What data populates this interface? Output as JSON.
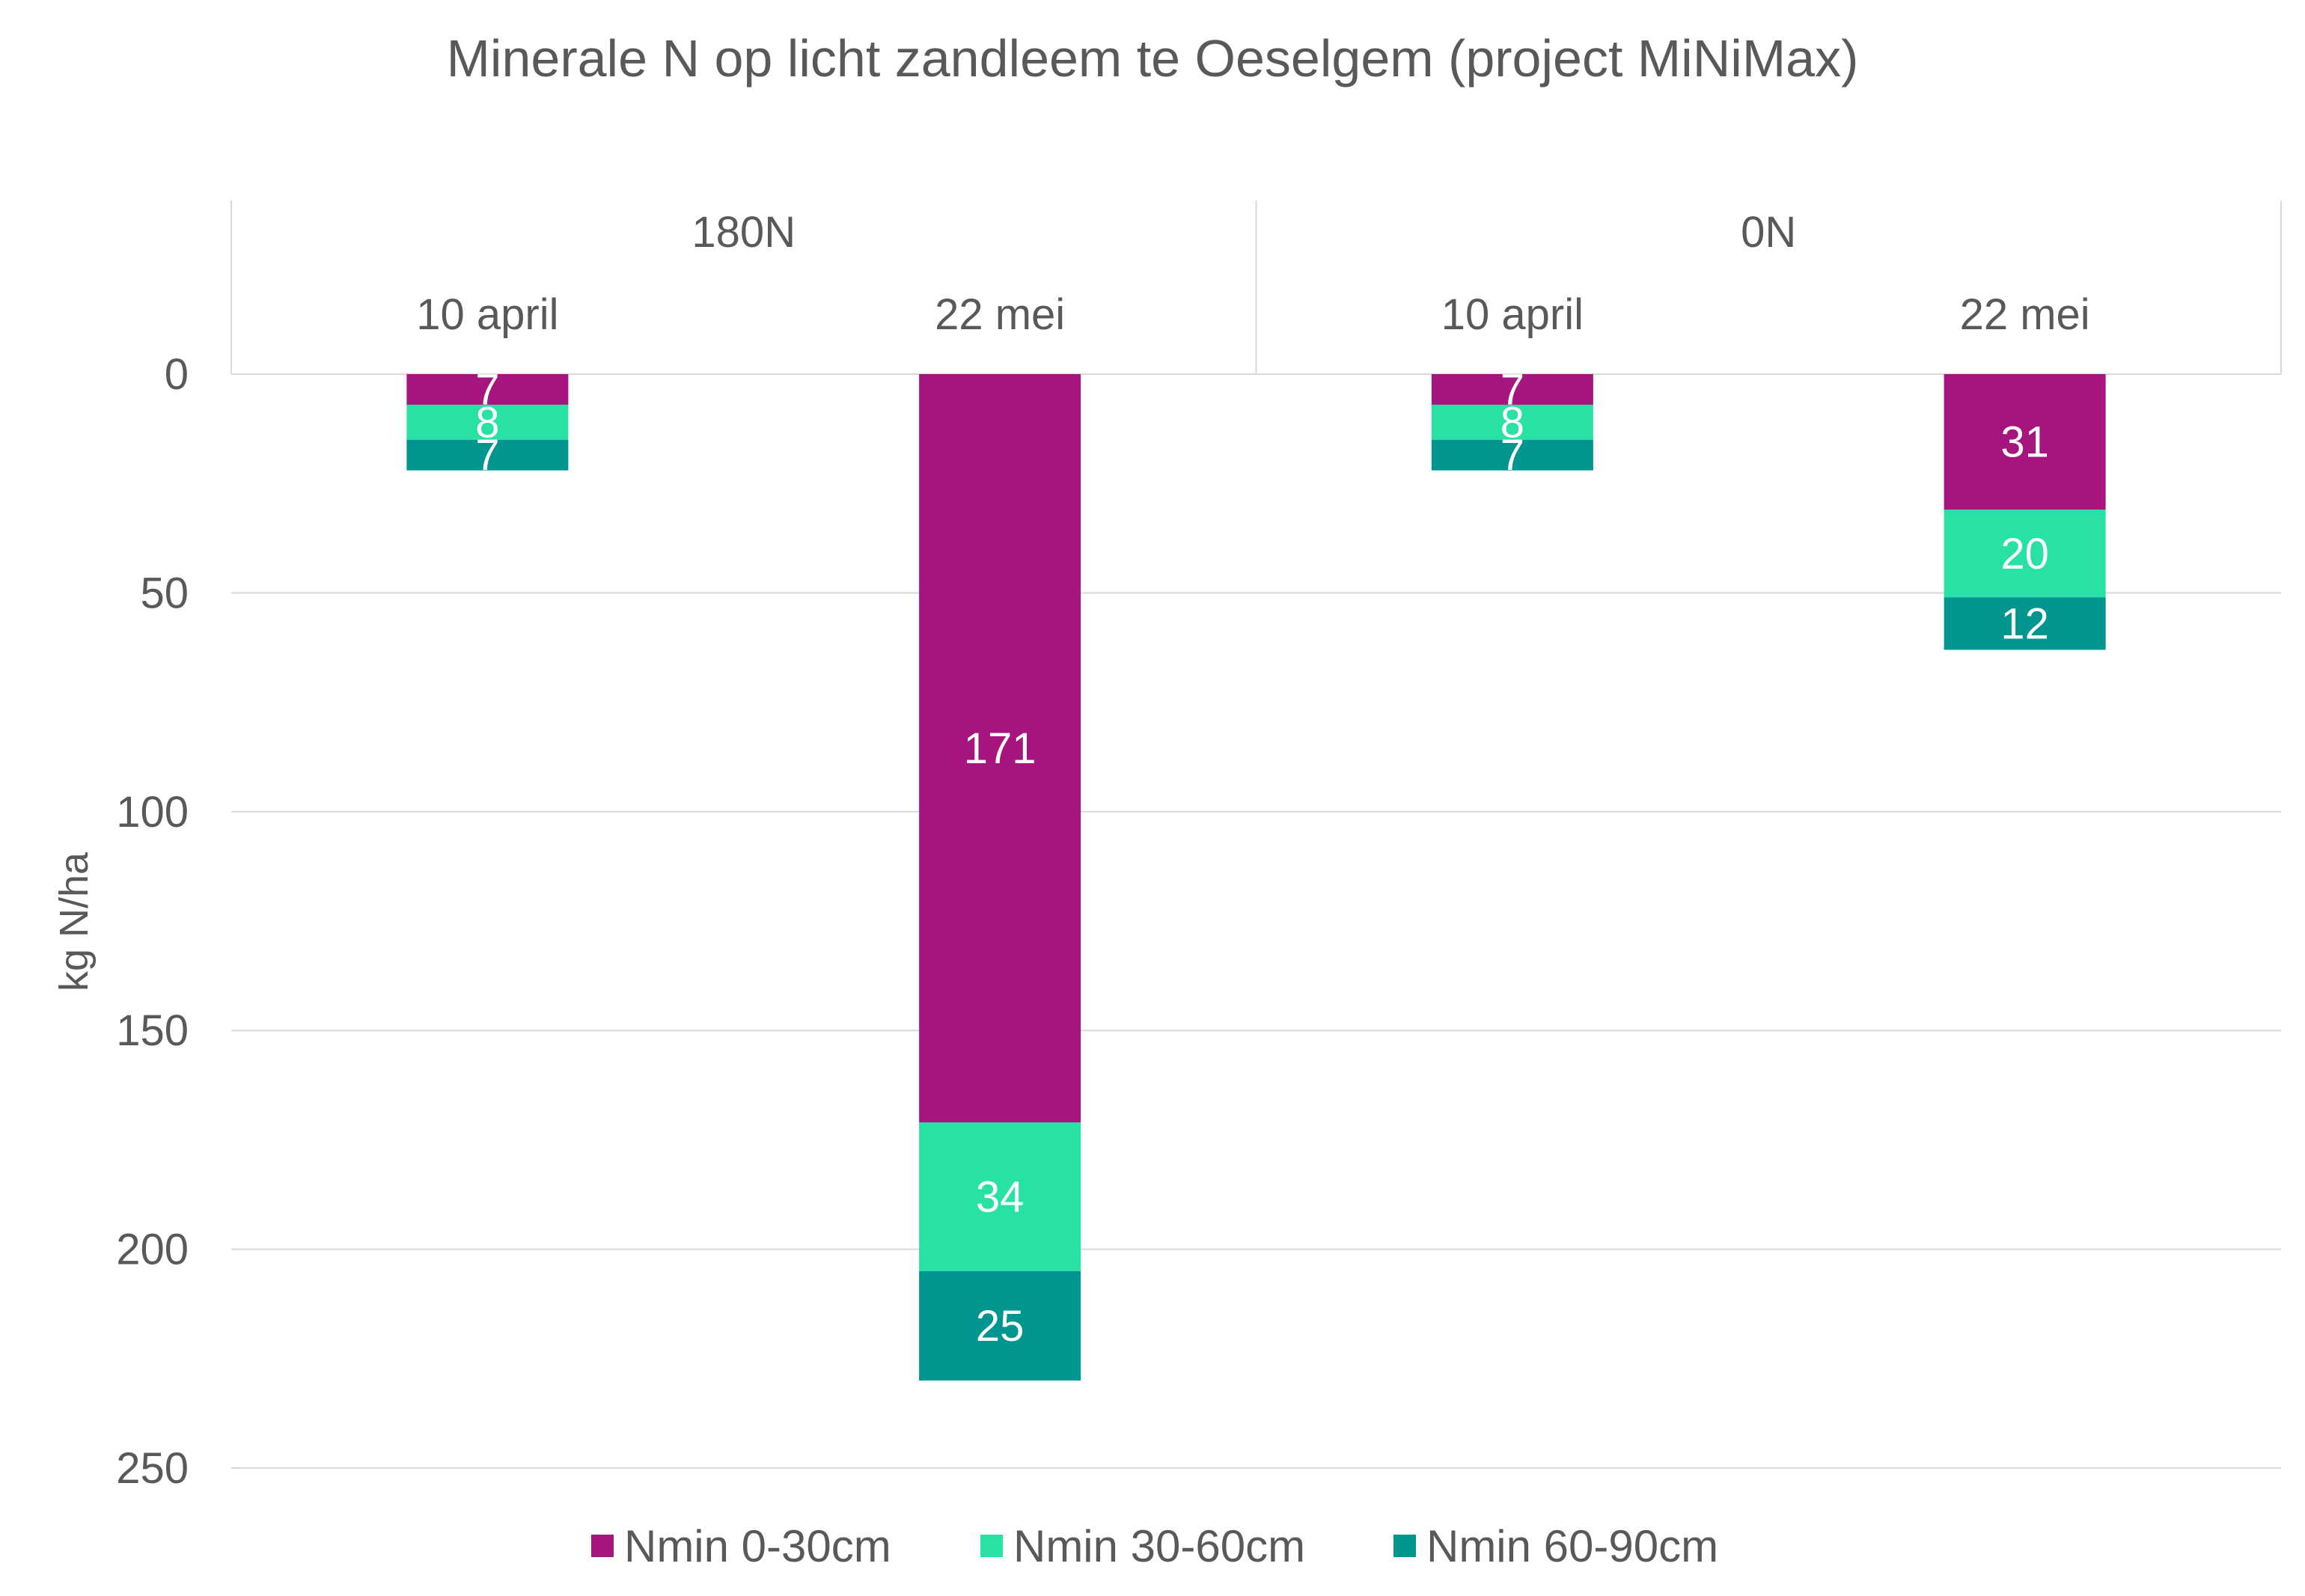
{
  "chart_data": {
    "type": "bar",
    "stacked": true,
    "orientation": "vertical",
    "y_axis_reversed": true,
    "title": "Minerale N op licht zandleem te Oeselgem (project MiNiMax)",
    "ylabel": "kg N/ha",
    "ylim": [
      0,
      250
    ],
    "yticks": [
      0,
      50,
      100,
      150,
      200,
      250
    ],
    "grid": true,
    "legend_position": "bottom",
    "groups": [
      {
        "name": "180N",
        "categories": [
          "10 april",
          "22 mei"
        ]
      },
      {
        "name": "0N",
        "categories": [
          "10 april",
          "22 mei"
        ]
      }
    ],
    "categories": [
      "10 april",
      "22 mei",
      "10 april",
      "22 mei"
    ],
    "series": [
      {
        "name": "Nmin 0-30cm",
        "color": "#a5157d",
        "values": [
          7,
          171,
          7,
          31
        ]
      },
      {
        "name": "Nmin 30-60cm",
        "color": "#27e2a4",
        "values": [
          8,
          34,
          8,
          20
        ]
      },
      {
        "name": "Nmin 60-90cm",
        "color": "#00958f",
        "values": [
          7,
          25,
          7,
          12
        ]
      }
    ]
  }
}
